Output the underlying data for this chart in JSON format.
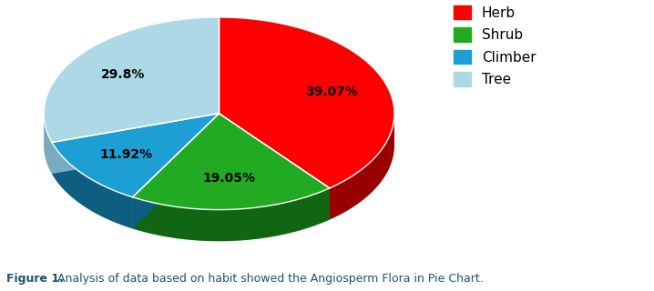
{
  "labels": [
    "Herb",
    "Shrub",
    "Climber",
    "Tree"
  ],
  "values": [
    39.07,
    19.05,
    11.92,
    29.8
  ],
  "colors": [
    "#FF0000",
    "#22AA22",
    "#1E9FD4",
    "#ADD8E6"
  ],
  "shadow_colors": [
    "#990000",
    "#116611",
    "#0D5E80",
    "#7AAABF"
  ],
  "autopct_values": [
    "39.07%",
    "19.05%",
    "11.92%",
    "29.8%"
  ],
  "startangle": 90,
  "caption_bold": "Figure 1.",
  "caption_normal": " Analysis of data based on habit showed the Angiosperm Flora in Pie Chart.",
  "legend_labels": [
    "Herb",
    "Shrub",
    "Climber",
    "Tree"
  ],
  "legend_colors": [
    "#FF0000",
    "#22AA22",
    "#1E9FD4",
    "#ADD8E6"
  ],
  "background_color": "#FFFFFF",
  "label_fontsize": 10,
  "label_color": "#000000",
  "pctdistance": 0.68,
  "depth": 0.18,
  "yscale": 0.55
}
